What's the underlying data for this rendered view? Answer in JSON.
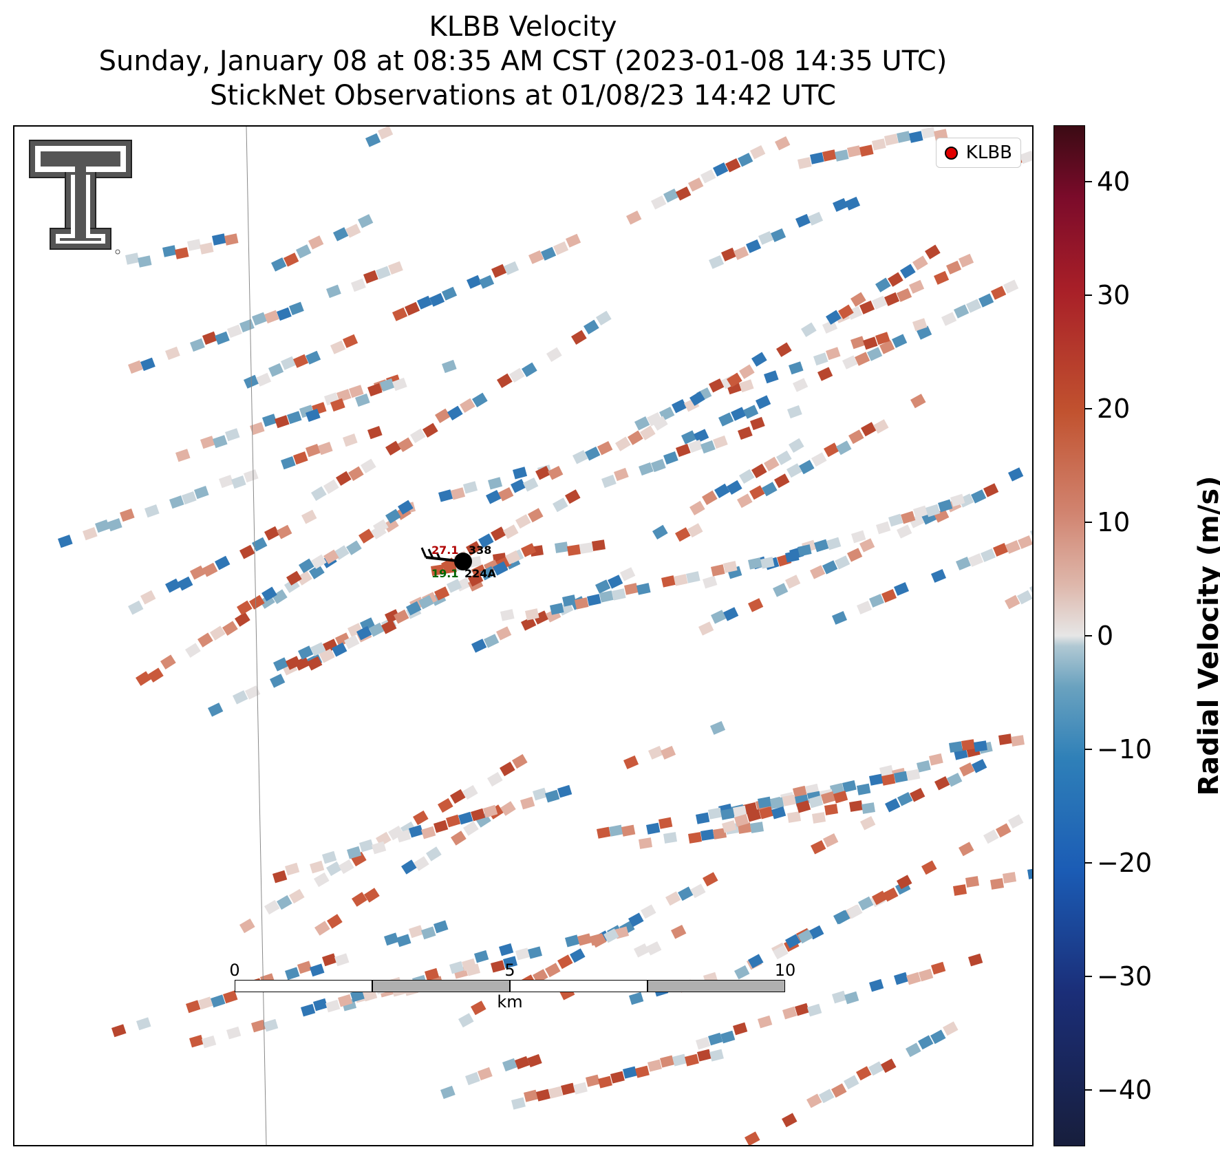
{
  "title": {
    "line1": "KLBB Velocity",
    "line2": "Sunday, January 08 at 08:35 AM CST (2023-01-08 14:35 UTC)",
    "line3": "StickNet Observations at 01/08/23 14:42 UTC"
  },
  "legend": {
    "label": "KLBB",
    "marker_color": "#e00000"
  },
  "logo": {
    "name": "texas-tech-double-t-logo"
  },
  "station": {
    "id_top": "338",
    "id_bottom": "224A",
    "temperature": "27.1",
    "dewpoint": "19.1",
    "temperature_color": "#b00000",
    "dewpoint_color": "#006400"
  },
  "scale_bar": {
    "ticks": [
      "0",
      "5",
      "10"
    ],
    "unit": "km"
  },
  "colorbar": {
    "title": "Radial Velocity (m/s)",
    "range": [
      -45,
      45
    ],
    "ticks": [
      "40",
      "30",
      "20",
      "10",
      "0",
      "−10",
      "−20",
      "−30",
      "−40"
    ]
  }
}
